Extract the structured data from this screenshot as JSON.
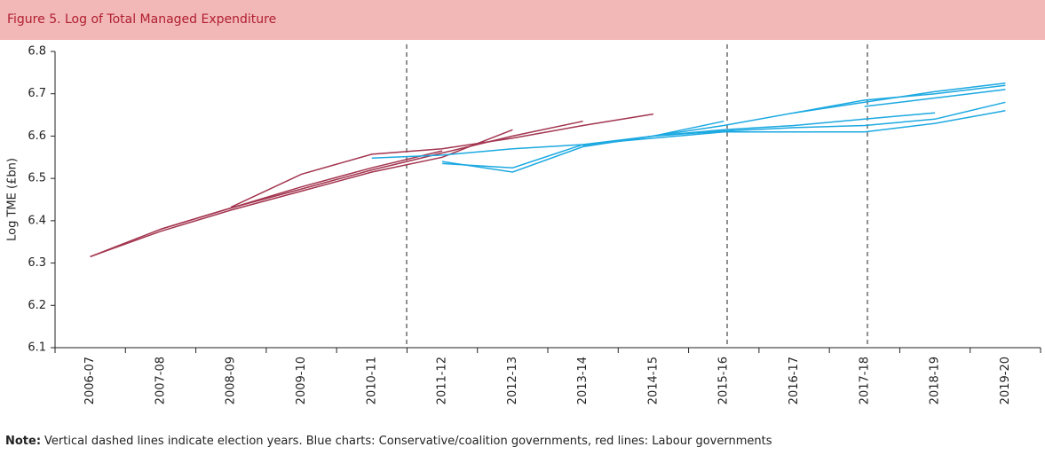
{
  "chart_data": {
    "type": "line",
    "title": "Figure 5. Log of Total Managed Expenditure",
    "y_label": "Log TME (£bn)",
    "note_bold": "Note:",
    "note": "Vertical dashed lines indicate election years. Blue charts: Conservative/coalition governments, red lines: Labour governments",
    "categories": [
      "2006-07",
      "2007-08",
      "2008-09",
      "2009-10",
      "2010-11",
      "2011-12",
      "2012-13",
      "2013-14",
      "2014-15",
      "2015-16",
      "2016-17",
      "2017-18",
      "2018-19",
      "2019-20"
    ],
    "ylim": [
      6.1,
      6.8
    ],
    "yticks": [
      6.1,
      6.2,
      6.3,
      6.4,
      6.5,
      6.6,
      6.7,
      6.8
    ],
    "series": [
      {
        "color": "#a3354f",
        "values": [
          6.315,
          6.375,
          6.425,
          6.47,
          6.515,
          6.55,
          6.615,
          null,
          null,
          null,
          null,
          null,
          null,
          null
        ]
      },
      {
        "color": "#a3354f",
        "values": [
          null,
          6.38,
          6.43,
          6.475,
          6.52,
          6.56,
          6.6,
          6.635,
          null,
          null,
          null,
          null,
          null,
          null
        ]
      },
      {
        "color": "#a3354f",
        "values": [
          null,
          null,
          6.432,
          6.51,
          6.557,
          6.57,
          6.595,
          6.625,
          6.652,
          null,
          null,
          null,
          null,
          null
        ]
      },
      {
        "color": "#a3354f",
        "values": [
          6.315,
          6.38,
          6.43,
          6.48,
          6.525,
          6.565,
          null,
          null,
          null,
          null,
          null,
          null,
          null,
          null
        ]
      },
      {
        "color": "#1ca9e1",
        "values": [
          null,
          null,
          null,
          null,
          6.548,
          6.555,
          6.57,
          6.58,
          6.6,
          6.635,
          null,
          null,
          null,
          null
        ]
      },
      {
        "color": "#1ca9e1",
        "values": [
          null,
          null,
          null,
          null,
          null,
          6.54,
          6.515,
          6.575,
          6.6,
          6.615,
          null,
          null,
          null,
          null
        ]
      },
      {
        "color": "#1ca9e1",
        "values": [
          null,
          null,
          null,
          null,
          null,
          6.535,
          6.525,
          6.58,
          6.595,
          6.61,
          6.61,
          6.61,
          6.63,
          6.66
        ]
      },
      {
        "color": "#1ca9e1",
        "values": [
          null,
          null,
          null,
          null,
          null,
          null,
          null,
          6.578,
          6.6,
          6.625,
          6.655,
          6.685,
          6.7,
          6.72
        ]
      },
      {
        "color": "#1ca9e1",
        "values": [
          null,
          null,
          null,
          null,
          null,
          null,
          null,
          null,
          6.6,
          6.612,
          6.62,
          6.625,
          6.64,
          6.68
        ]
      },
      {
        "color": "#1ca9e1",
        "values": [
          null,
          null,
          null,
          null,
          null,
          null,
          null,
          null,
          null,
          null,
          6.655,
          6.68,
          6.705,
          6.725
        ]
      },
      {
        "color": "#1ca9e1",
        "values": [
          null,
          null,
          null,
          null,
          null,
          null,
          null,
          null,
          null,
          6.615,
          6.625,
          6.64,
          6.655,
          null
        ]
      },
      {
        "color": "#1ca9e1",
        "values": [
          null,
          null,
          null,
          null,
          null,
          null,
          null,
          null,
          null,
          null,
          null,
          6.67,
          6.69,
          6.71
        ]
      }
    ]
  }
}
